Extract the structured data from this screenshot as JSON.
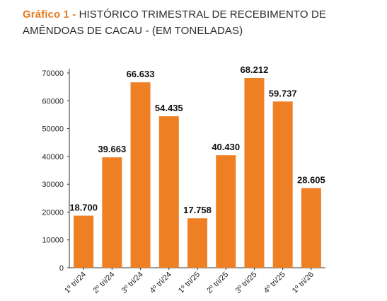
{
  "title": {
    "prefix": "Gráfico 1 -",
    "text": "HISTÓRICO TRIMESTRAL DE RECEBIMENTO DE AMÊNDOAS DE CACAU - (EM TONELADAS)"
  },
  "colors": {
    "bar": "#ef7f23",
    "axis": "#333333",
    "prefix": "#e57c1f"
  },
  "chart_data": {
    "type": "bar",
    "title": "Gráfico 1 - HISTÓRICO TRIMESTRAL DE RECEBIMENTO DE AMÊNDOAS DE CACAU - (EM TONELADAS)",
    "categories": [
      "1º tri/24",
      "2º tri/24",
      "3º tri/24",
      "4º tri/24",
      "1º tri/25",
      "2º tri/25",
      "3º tri/25",
      "4º tri/25",
      "1º tri/26"
    ],
    "values": [
      18700,
      39663,
      66633,
      54435,
      17758,
      40430,
      68212,
      59737,
      28605
    ],
    "value_labels": [
      "18.700",
      "39.663",
      "66.633",
      "54.435",
      "17.758",
      "40.430",
      "68.212",
      "59.737",
      "28.605"
    ],
    "yticks": [
      "0",
      "10000",
      "20000",
      "30000",
      "40000",
      "50000",
      "60000",
      "70000"
    ],
    "ylim": [
      0,
      70000
    ],
    "grid": false,
    "legend": "none"
  }
}
